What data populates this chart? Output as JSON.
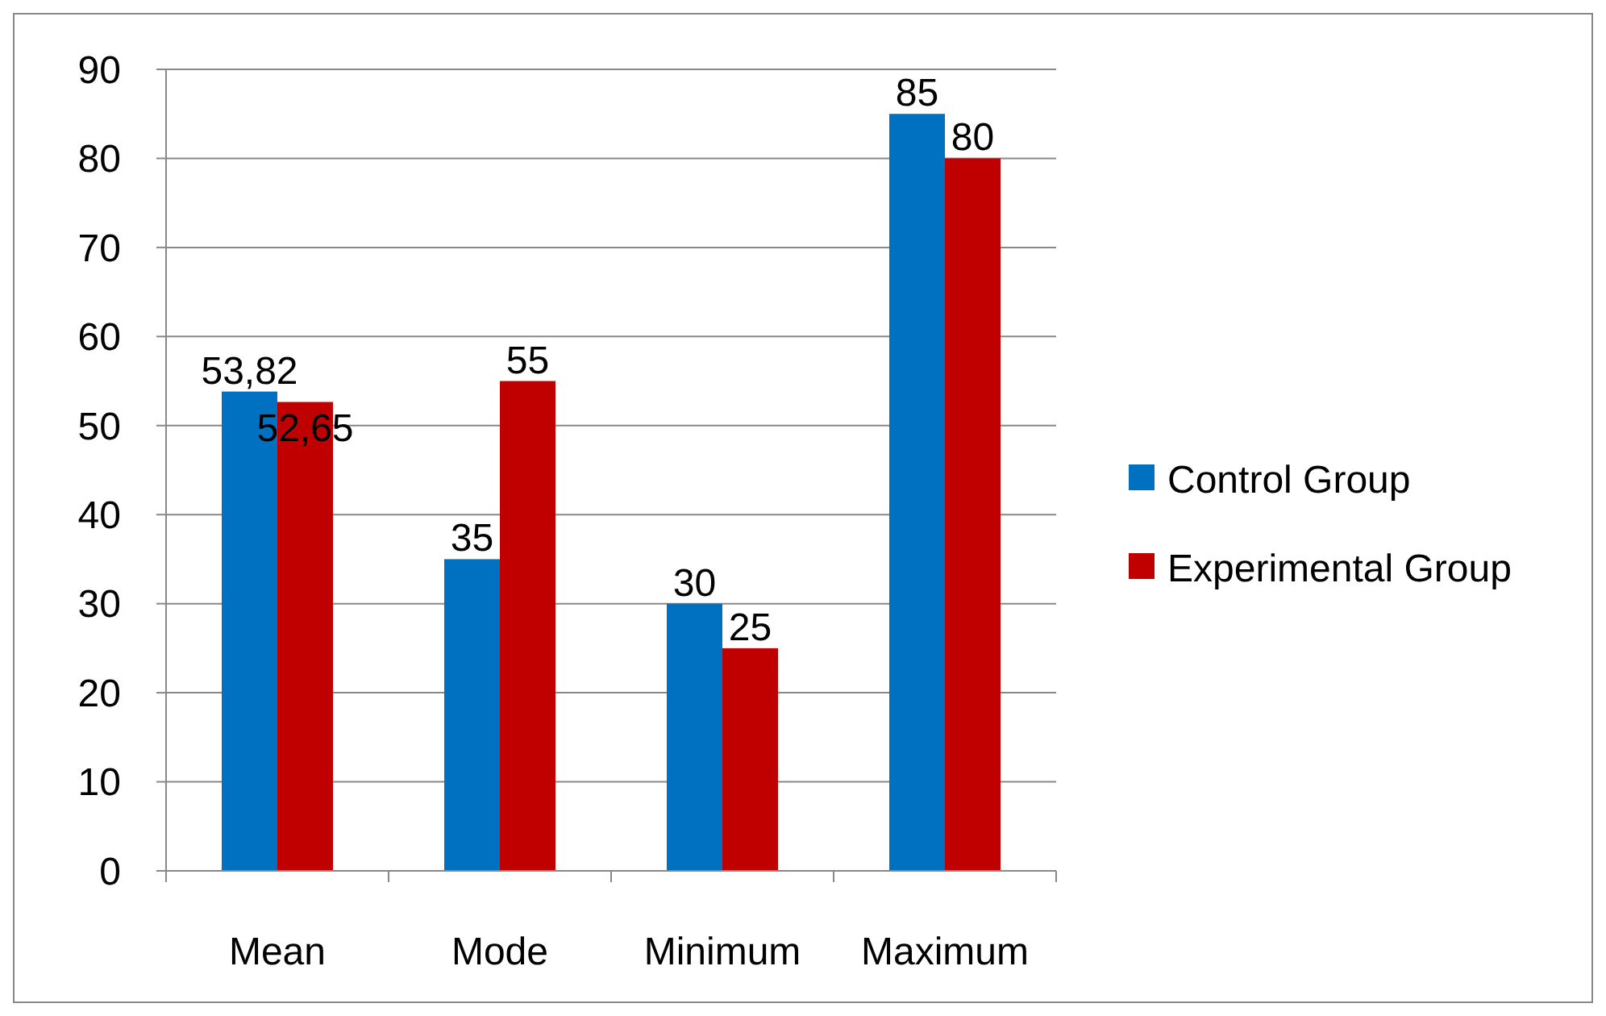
{
  "chart_data": {
    "type": "bar",
    "categories": [
      "Mean",
      "Mode",
      "Minimum",
      "Maximum"
    ],
    "series": [
      {
        "name": "Control Group",
        "color": "#0070c0",
        "values": [
          53.82,
          35,
          30,
          85
        ],
        "value_labels": [
          "53,82",
          "35",
          "30",
          "85"
        ]
      },
      {
        "name": "Experimental Group",
        "color": "#c00000",
        "values": [
          52.65,
          55,
          25,
          80
        ],
        "value_labels": [
          "52,65",
          "55",
          "25",
          "80"
        ]
      }
    ],
    "ylim": [
      0,
      90
    ],
    "yticks": [
      0,
      10,
      20,
      30,
      40,
      50,
      60,
      70,
      80,
      90
    ],
    "grid": "y",
    "legend": "right"
  }
}
